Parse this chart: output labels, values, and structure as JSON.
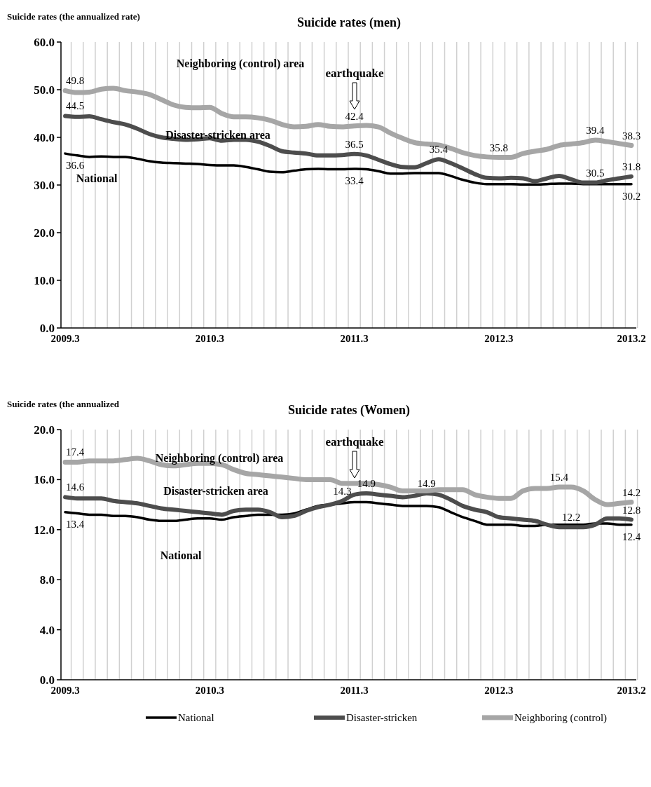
{
  "chart_data": [
    {
      "type": "line",
      "title": "Suicide rates (men)",
      "ylabel": "Suicide rates (the annualized rate)",
      "categories": [
        "2009.3",
        null,
        null,
        null,
        null,
        null,
        null,
        null,
        null,
        null,
        null,
        null,
        "2010.3",
        null,
        null,
        null,
        null,
        null,
        null,
        null,
        null,
        null,
        null,
        null,
        "2011.3",
        null,
        null,
        null,
        null,
        null,
        null,
        null,
        null,
        null,
        null,
        null,
        "2012.3",
        null,
        null,
        null,
        null,
        null,
        null,
        null,
        null,
        null,
        null,
        "2013.2"
      ],
      "ylim": [
        0,
        60
      ],
      "yticks": [
        {
          "value": 0,
          "label": "0.0"
        },
        {
          "value": 10,
          "label": "10.0"
        },
        {
          "value": 20,
          "label": "20.0"
        },
        {
          "value": 30,
          "label": "30.0"
        },
        {
          "value": 40,
          "label": "40.0"
        },
        {
          "value": 50,
          "label": "50.0"
        },
        {
          "value": 60,
          "label": "60.0"
        }
      ],
      "grid": "x",
      "line_style": "solid",
      "series": [
        {
          "color": "#000000",
          "values": [
            36.6,
            36.2,
            35.9,
            36.0,
            35.9,
            35.9,
            35.5,
            35.0,
            34.7,
            34.6,
            34.5,
            34.4,
            34.2,
            34.1,
            34.1,
            33.8,
            33.3,
            32.8,
            32.7,
            33.0,
            33.3,
            33.4,
            33.3,
            33.3,
            33.4,
            33.3,
            32.9,
            32.4,
            32.4,
            32.5,
            32.5,
            32.5,
            31.9,
            31.1,
            30.5,
            30.2,
            30.2,
            30.2,
            30.1,
            30.1,
            30.2,
            30.3,
            30.3,
            30.2,
            30.2,
            30.2,
            30.2,
            30.2
          ],
          "value_labels": [
            "36.6",
            null,
            null,
            null,
            null,
            null,
            null,
            null,
            null,
            null,
            null,
            null,
            null,
            null,
            null,
            null,
            null,
            null,
            null,
            null,
            null,
            null,
            null,
            null,
            "33.4",
            null,
            null,
            null,
            null,
            null,
            null,
            null,
            null,
            null,
            null,
            null,
            null,
            null,
            null,
            null,
            null,
            null,
            null,
            null,
            null,
            null,
            null,
            "30.2"
          ]
        },
        {
          "color": "#4d4d4d",
          "values": [
            44.5,
            44.3,
            44.4,
            43.8,
            43.2,
            42.7,
            41.8,
            40.7,
            40.0,
            39.7,
            39.5,
            39.6,
            39.8,
            39.3,
            39.5,
            39.5,
            39.1,
            38.2,
            37.1,
            36.8,
            36.6,
            36.2,
            36.2,
            36.3,
            36.5,
            36.2,
            35.3,
            34.4,
            33.8,
            33.7,
            34.6,
            35.4,
            34.6,
            33.5,
            32.3,
            31.5,
            31.4,
            31.5,
            31.4,
            30.8,
            31.4,
            31.9,
            31.2,
            30.5,
            30.5,
            31.0,
            31.4,
            31.8
          ],
          "value_labels": [
            "44.5",
            null,
            null,
            null,
            null,
            null,
            null,
            null,
            null,
            null,
            null,
            null,
            null,
            null,
            null,
            null,
            null,
            null,
            null,
            null,
            null,
            null,
            null,
            null,
            "36.5",
            null,
            null,
            null,
            null,
            null,
            null,
            "35.4",
            null,
            null,
            null,
            null,
            null,
            null,
            null,
            null,
            null,
            null,
            null,
            null,
            "30.5",
            null,
            null,
            "31.8"
          ]
        },
        {
          "color": "#a6a6a6",
          "values": [
            49.8,
            49.4,
            49.5,
            50.1,
            50.3,
            49.8,
            49.5,
            49.0,
            47.9,
            46.8,
            46.3,
            46.2,
            46.3,
            45.0,
            44.3,
            44.3,
            44.1,
            43.6,
            42.7,
            42.2,
            42.3,
            42.7,
            42.3,
            42.2,
            42.4,
            42.5,
            42.2,
            40.9,
            39.8,
            38.9,
            38.6,
            38.4,
            37.7,
            36.8,
            36.2,
            35.9,
            35.8,
            35.8,
            36.6,
            37.1,
            37.5,
            38.3,
            38.6,
            38.9,
            39.4,
            39.1,
            38.7,
            38.3
          ],
          "value_labels": [
            "49.8",
            null,
            null,
            null,
            null,
            null,
            null,
            null,
            null,
            null,
            null,
            null,
            null,
            null,
            null,
            null,
            null,
            null,
            null,
            null,
            null,
            null,
            null,
            null,
            "42.4",
            null,
            null,
            null,
            null,
            null,
            null,
            null,
            null,
            null,
            null,
            null,
            "35.8",
            null,
            null,
            null,
            null,
            null,
            null,
            null,
            "39.4",
            null,
            null,
            "38.3"
          ]
        }
      ],
      "annotations": [
        "National",
        "Disaster-stricken area",
        "Neighboring (control) area",
        "earthquake"
      ]
    },
    {
      "type": "line",
      "title": "Suicide rates (Women)",
      "ylabel": "Suicide rates (the annualized",
      "categories": [
        "2009.3",
        null,
        null,
        null,
        null,
        null,
        null,
        null,
        null,
        null,
        null,
        null,
        "2010.3",
        null,
        null,
        null,
        null,
        null,
        null,
        null,
        null,
        null,
        null,
        null,
        "2011.3",
        null,
        null,
        null,
        null,
        null,
        null,
        null,
        null,
        null,
        null,
        null,
        "2012.3",
        null,
        null,
        null,
        null,
        null,
        null,
        null,
        null,
        null,
        null,
        "2013.2"
      ],
      "ylim": [
        0,
        20
      ],
      "yticks": [
        {
          "value": 0,
          "label": "0.0"
        },
        {
          "value": 4,
          "label": "4.0"
        },
        {
          "value": 8,
          "label": "8.0"
        },
        {
          "value": 12,
          "label": "12.0"
        },
        {
          "value": 16,
          "label": "16.0"
        },
        {
          "value": 20,
          "label": "20.0"
        }
      ],
      "grid": "x",
      "line_style": "solid",
      "legend": "bottom",
      "series": [
        {
          "name": "National",
          "color": "#000000",
          "values": [
            13.4,
            13.3,
            13.2,
            13.2,
            13.1,
            13.1,
            13.0,
            12.8,
            12.7,
            12.7,
            12.8,
            12.9,
            12.9,
            12.8,
            13.0,
            13.1,
            13.2,
            13.2,
            13.2,
            13.3,
            13.6,
            13.9,
            14.0,
            14.1,
            14.2,
            14.2,
            14.1,
            14.0,
            13.9,
            13.9,
            13.9,
            13.8,
            13.4,
            13.0,
            12.7,
            12.4,
            12.4,
            12.4,
            12.3,
            12.3,
            12.4,
            12.4,
            12.4,
            12.4,
            12.5,
            12.5,
            12.4,
            12.4
          ],
          "value_labels": [
            "13.4",
            null,
            null,
            null,
            null,
            null,
            null,
            null,
            null,
            null,
            null,
            null,
            null,
            null,
            null,
            null,
            null,
            null,
            null,
            null,
            null,
            null,
            null,
            null,
            null,
            null,
            null,
            null,
            null,
            null,
            null,
            null,
            null,
            null,
            null,
            null,
            null,
            null,
            null,
            null,
            null,
            null,
            null,
            null,
            null,
            null,
            null,
            "12.4"
          ]
        },
        {
          "name": "Disaster-stricken",
          "color": "#4d4d4d",
          "values": [
            14.6,
            14.5,
            14.5,
            14.5,
            14.3,
            14.2,
            14.1,
            13.9,
            13.7,
            13.6,
            13.5,
            13.4,
            13.3,
            13.2,
            13.5,
            13.6,
            13.6,
            13.4,
            13.0,
            13.1,
            13.5,
            13.8,
            14.0,
            14.3,
            14.8,
            14.9,
            14.8,
            14.7,
            14.6,
            14.7,
            14.9,
            14.8,
            14.4,
            13.9,
            13.6,
            13.4,
            13.0,
            12.9,
            12.8,
            12.7,
            12.4,
            12.2,
            12.2,
            12.2,
            12.4,
            12.9,
            12.9,
            12.8
          ],
          "value_labels": [
            "14.6",
            null,
            null,
            null,
            null,
            null,
            null,
            null,
            null,
            null,
            null,
            null,
            null,
            null,
            null,
            null,
            null,
            null,
            null,
            null,
            null,
            null,
            null,
            "14.3",
            null,
            "14.9",
            null,
            null,
            null,
            null,
            "14.9",
            null,
            null,
            null,
            null,
            null,
            null,
            null,
            null,
            null,
            null,
            null,
            "12.2",
            null,
            null,
            null,
            null,
            "12.8"
          ]
        },
        {
          "name": "Neighboring (control)",
          "color": "#a6a6a6",
          "values": [
            17.4,
            17.4,
            17.5,
            17.5,
            17.5,
            17.6,
            17.7,
            17.5,
            17.2,
            17.1,
            17.2,
            17.3,
            17.3,
            17.2,
            16.8,
            16.5,
            16.4,
            16.3,
            16.2,
            16.1,
            16.0,
            16.0,
            16.0,
            15.7,
            15.7,
            15.7,
            15.6,
            15.4,
            15.1,
            15.1,
            15.1,
            15.2,
            15.2,
            15.2,
            14.8,
            14.6,
            14.5,
            14.5,
            15.1,
            15.3,
            15.3,
            15.4,
            15.4,
            15.1,
            14.4,
            14.0,
            14.1,
            14.2
          ],
          "value_labels": [
            "17.4",
            null,
            null,
            null,
            null,
            null,
            null,
            null,
            null,
            null,
            null,
            null,
            null,
            null,
            null,
            null,
            null,
            null,
            null,
            null,
            null,
            null,
            null,
            null,
            null,
            null,
            null,
            null,
            null,
            null,
            null,
            null,
            null,
            null,
            null,
            null,
            null,
            null,
            null,
            null,
            null,
            "15.4",
            null,
            null,
            null,
            null,
            null,
            "14.2"
          ]
        }
      ],
      "annotations": [
        "Neighboring (control) area",
        "Disaster-stricken area",
        "National",
        "earthquake"
      ]
    }
  ]
}
